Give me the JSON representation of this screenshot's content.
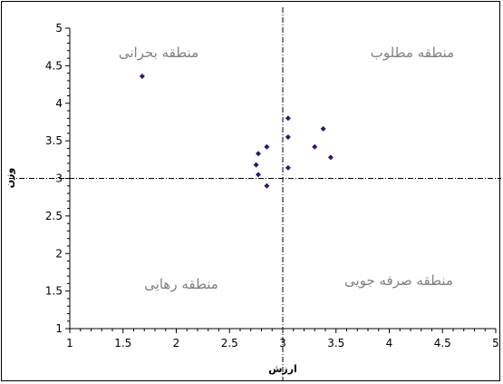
{
  "chart_data": {
    "type": "scatter",
    "xlabel": "ارزش",
    "ylabel": "وزن",
    "xlim": [
      1,
      5
    ],
    "ylim": [
      1,
      5
    ],
    "xticks": [
      "1",
      "1.5",
      "2",
      "2.5",
      "3",
      "3.5",
      "4",
      "4.5",
      "5"
    ],
    "yticks": [
      "1",
      "1.5",
      "2",
      "2.5",
      "3",
      "3.5",
      "4",
      "4.5",
      "5"
    ],
    "grid": false,
    "reference_lines": {
      "x": 3.0,
      "y": 3.0,
      "style": "dash-dot"
    },
    "zones": {
      "top_left": "منطقه بحرانی",
      "top_right": "منطقه مطلوب",
      "bottom_left": "منطقه رهایی",
      "bottom_right": "منطقه صرفه جویی"
    },
    "marker_color": "#1f1f6b",
    "points": [
      {
        "x": 1.68,
        "y": 4.36
      },
      {
        "x": 2.75,
        "y": 3.18
      },
      {
        "x": 2.77,
        "y": 3.33
      },
      {
        "x": 2.77,
        "y": 3.05
      },
      {
        "x": 2.85,
        "y": 3.42
      },
      {
        "x": 2.85,
        "y": 2.9
      },
      {
        "x": 3.05,
        "y": 3.8
      },
      {
        "x": 3.05,
        "y": 3.55
      },
      {
        "x": 3.05,
        "y": 3.14
      },
      {
        "x": 3.3,
        "y": 3.42
      },
      {
        "x": 3.38,
        "y": 3.66
      },
      {
        "x": 3.45,
        "y": 3.28
      }
    ]
  }
}
